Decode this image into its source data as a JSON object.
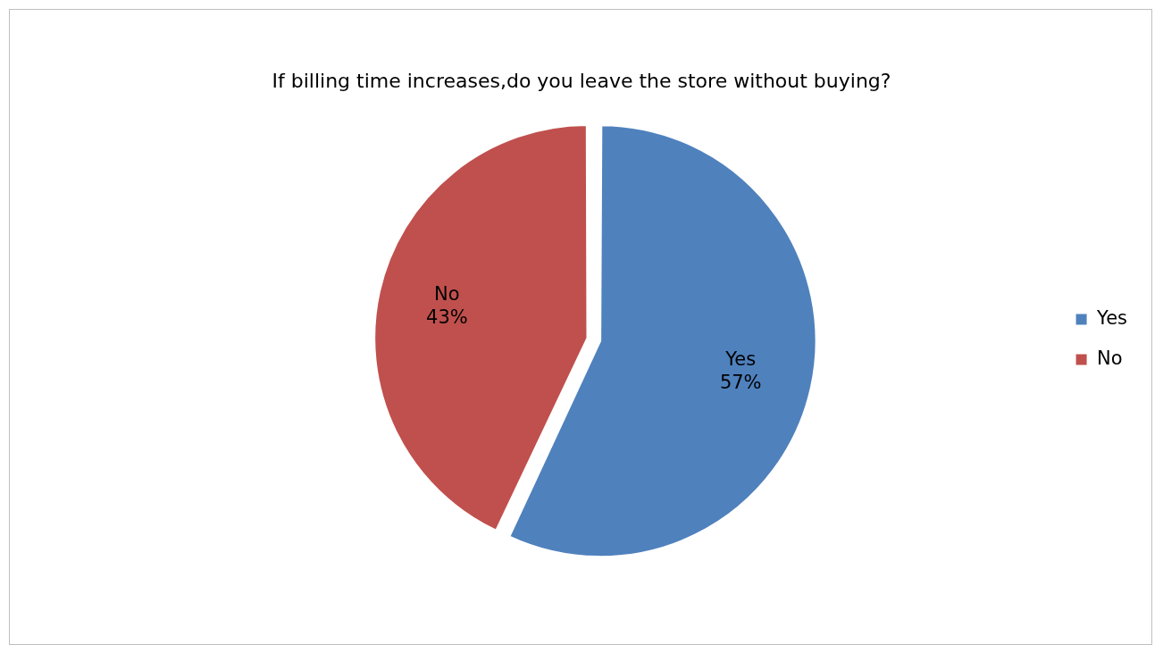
{
  "chart_data": {
    "type": "pie",
    "title": "If billing time increases,do you leave the store without buying?",
    "categories": [
      "Yes",
      "No"
    ],
    "values": [
      57,
      43
    ],
    "colors": [
      "#4f81bd",
      "#c0504d"
    ],
    "value_labels": [
      "57%",
      "43%"
    ],
    "legend": "right"
  }
}
